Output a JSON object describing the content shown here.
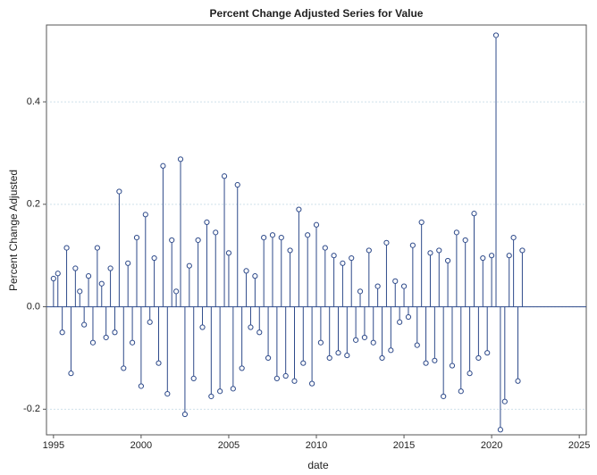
{
  "chart_data": {
    "type": "needle",
    "title": "Percent Change Adjusted Series for Value",
    "x_label": "date",
    "y_label": "Percent Change Adjusted",
    "x": [
      1995,
      1995.25,
      1995.5,
      1995.75,
      1996,
      1996.25,
      1996.5,
      1996.75,
      1997,
      1997.25,
      1997.5,
      1997.75,
      1998,
      1998.25,
      1998.5,
      1998.75,
      1999,
      1999.25,
      1999.5,
      1999.75,
      2000,
      2000.25,
      2000.5,
      2000.75,
      2001,
      2001.25,
      2001.5,
      2001.75,
      2002,
      2002.25,
      2002.5,
      2002.75,
      2003,
      2003.25,
      2003.5,
      2003.75,
      2004,
      2004.25,
      2004.5,
      2004.75,
      2005,
      2005.25,
      2005.5,
      2005.75,
      2006,
      2006.25,
      2006.5,
      2006.75,
      2007,
      2007.25,
      2007.5,
      2007.75,
      2008,
      2008.25,
      2008.5,
      2008.75,
      2009,
      2009.25,
      2009.5,
      2009.75,
      2010,
      2010.25,
      2010.5,
      2010.75,
      2011,
      2011.25,
      2011.5,
      2011.75,
      2012,
      2012.25,
      2012.5,
      2012.75,
      2013,
      2013.25,
      2013.5,
      2013.75,
      2014,
      2014.25,
      2014.5,
      2014.75,
      2015,
      2015.25,
      2015.5,
      2015.75,
      2016,
      2016.25,
      2016.5,
      2016.75,
      2017,
      2017.25,
      2017.5,
      2017.75,
      2018,
      2018.25,
      2018.5,
      2018.75,
      2019,
      2019.25,
      2019.5,
      2019.75,
      2020,
      2020.25,
      2020.5,
      2020.75,
      2021,
      2021.25,
      2021.5,
      2021.75
    ],
    "series": [
      {
        "color": "#2e4a8a",
        "values": [
          0.055,
          0.065,
          -0.05,
          0.115,
          -0.13,
          0.075,
          0.03,
          -0.035,
          0.06,
          -0.07,
          0.115,
          0.045,
          -0.06,
          0.075,
          -0.05,
          0.225,
          -0.12,
          0.085,
          -0.07,
          0.135,
          -0.155,
          0.18,
          -0.03,
          0.095,
          -0.11,
          0.275,
          -0.17,
          0.13,
          0.03,
          0.288,
          -0.21,
          0.08,
          -0.14,
          0.13,
          -0.04,
          0.165,
          -0.175,
          0.145,
          -0.165,
          0.255,
          0.105,
          -0.16,
          0.238,
          -0.12,
          0.07,
          -0.04,
          0.06,
          -0.05,
          0.135,
          -0.1,
          0.14,
          -0.14,
          0.135,
          -0.135,
          0.11,
          -0.145,
          0.19,
          -0.11,
          0.14,
          -0.15,
          0.16,
          -0.07,
          0.115,
          -0.1,
          0.1,
          -0.09,
          0.085,
          -0.095,
          0.095,
          -0.065,
          0.03,
          -0.06,
          0.11,
          -0.07,
          0.04,
          -0.1,
          0.125,
          -0.085,
          0.05,
          -0.03,
          0.04,
          -0.02,
          0.12,
          -0.075,
          0.165,
          -0.11,
          0.105,
          -0.105,
          0.11,
          -0.175,
          0.09,
          -0.115,
          0.145,
          -0.165,
          0.13,
          -0.13,
          0.182,
          -0.1,
          0.095,
          -0.09,
          0.1,
          0.53,
          -0.24,
          -0.185,
          0.1,
          0.135,
          -0.145,
          0.11
        ]
      }
    ],
    "xlim": [
      1994.6,
      2025.4
    ],
    "ylim": [
      -0.25,
      0.55
    ],
    "xticks": [
      1995,
      2000,
      2005,
      2010,
      2015,
      2020,
      2025
    ],
    "yticks": [
      -0.2,
      {
        "value": 0,
        "label": "0.0"
      },
      0.2,
      0.4
    ],
    "grid": true
  }
}
